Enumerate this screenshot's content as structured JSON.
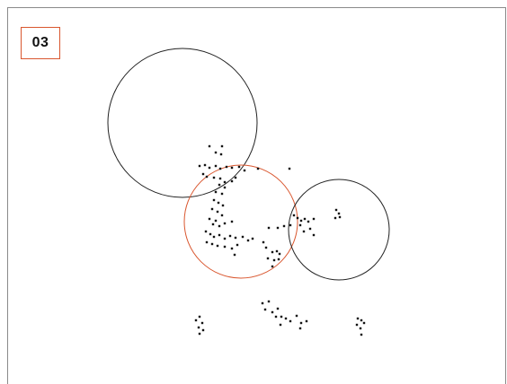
{
  "panel": {
    "label": "03",
    "accent_color": "#d9562e"
  },
  "colors": {
    "frame": "#8a8a8a",
    "circle_default": "#222222",
    "circle_highlight": "#d9562e",
    "point": "#111111"
  }
}
